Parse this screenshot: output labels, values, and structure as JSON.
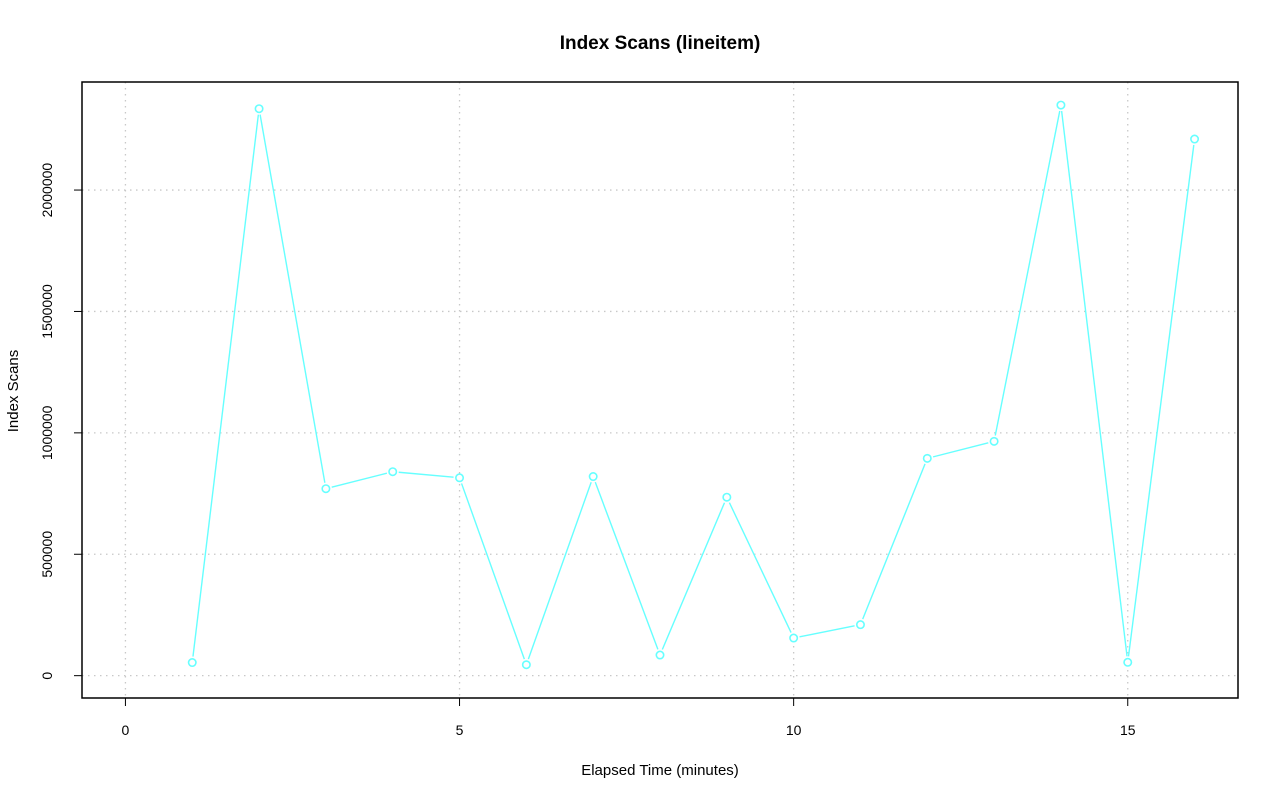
{
  "chart_data": {
    "type": "line",
    "title": "Index Scans (lineitem)",
    "xlabel": "Elapsed Time (minutes)",
    "ylabel": "Index Scans",
    "x_ticks": [
      "0",
      "5",
      "10",
      "15"
    ],
    "y_ticks": [
      "0",
      "500000",
      "1000000",
      "1500000",
      "2000000"
    ],
    "xlim": [
      -0.65,
      16.65
    ],
    "ylim": [
      -92000,
      2445000
    ],
    "grid": true,
    "series": [
      {
        "color": "#66ffff",
        "x": [
          1,
          2,
          3,
          4,
          5,
          6,
          7,
          8,
          9,
          10,
          11,
          12,
          13,
          14,
          15,
          16
        ],
        "y": [
          54000,
          2335000,
          770000,
          840000,
          815000,
          45000,
          820000,
          85000,
          735000,
          155000,
          210000,
          895000,
          965000,
          2350000,
          55000,
          2210000
        ]
      }
    ]
  }
}
